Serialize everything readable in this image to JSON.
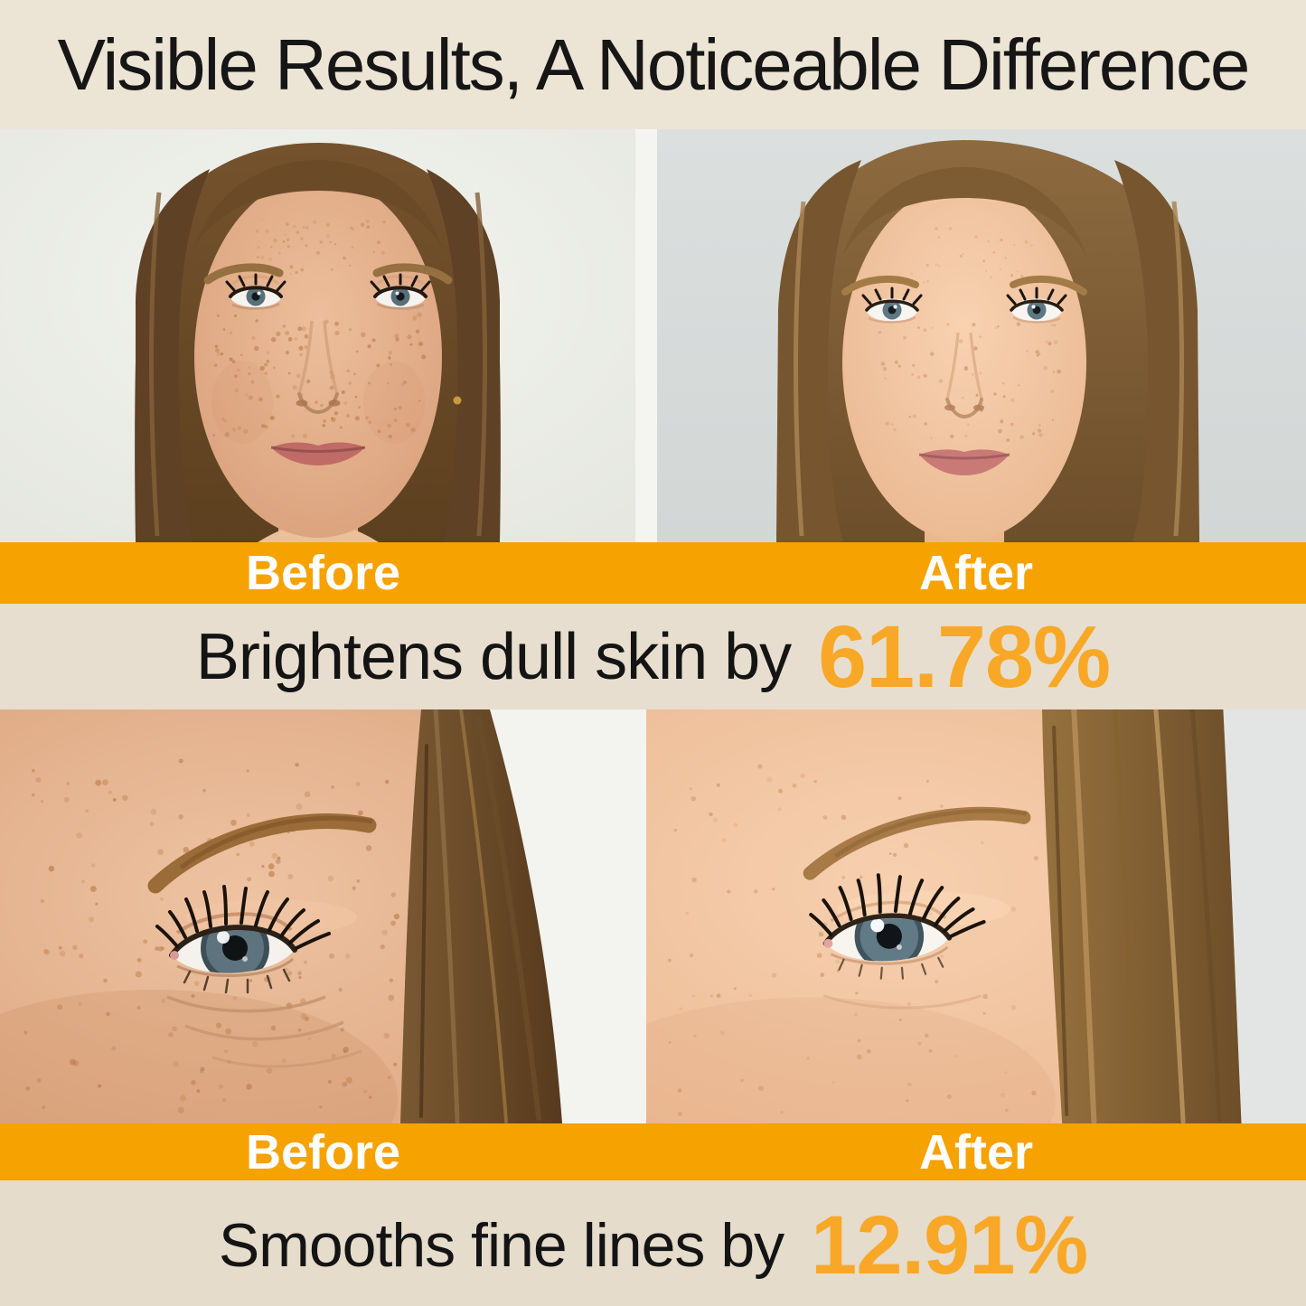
{
  "title": "Visible Results, A Noticeable Difference",
  "colors": {
    "background_beige": "#E8DFD0",
    "banner_orange": "#F6A201",
    "stat_orange": "#F8A826",
    "title_black": "#161616",
    "banner_label_white": "#FFFFFF"
  },
  "photo_sections": [
    {
      "before_label": "Before",
      "after_label": "After",
      "stat_prefix": "Brightens dull skin by",
      "stat_value": "61.78%",
      "before_photo": "woman-portrait-dull-freckled-skin",
      "after_photo": "woman-portrait-brightened-skin"
    },
    {
      "before_label": "Before",
      "after_label": "After",
      "stat_prefix": "Smooths fine lines by",
      "stat_value": "12.91%",
      "before_photo": "eye-closeup-with-fine-lines",
      "after_photo": "eye-closeup-smoothed-skin"
    }
  ]
}
